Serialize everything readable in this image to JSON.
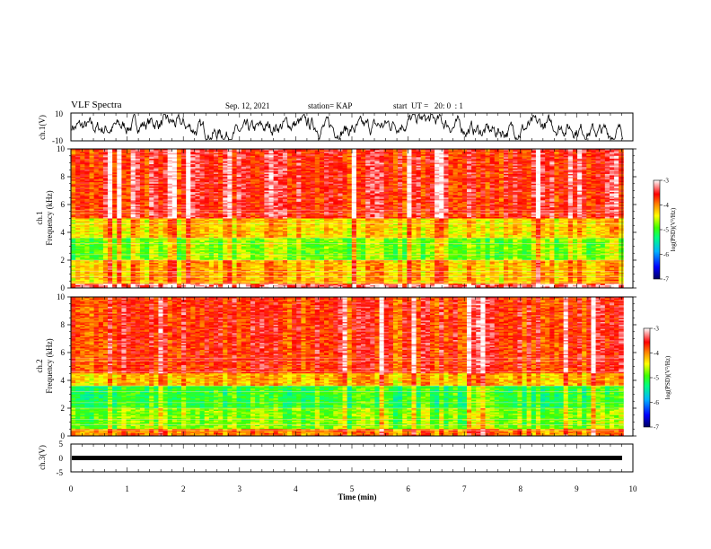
{
  "header": {
    "title": "VLF Spectra",
    "date": "Sep. 12, 2021",
    "station": "station= KAP",
    "start": "start  UT =   20: 0  : 1"
  },
  "chart_data": [
    {
      "type": "line",
      "panel": "ch1-waveform",
      "ylabel": "ch.1(V)",
      "ylim": [
        -10,
        10
      ],
      "yticks": [
        "10",
        "-10"
      ],
      "x_range_min": [
        0,
        10
      ],
      "data_range_min": [
        0,
        9.83
      ],
      "description_values": "noisy oscillating waveform centered near 0 V, amplitude mostly within ±7 V"
    },
    {
      "type": "heatmap",
      "panel": "ch1-spectrogram",
      "ylabel": "ch.1\nFrequency (kHz)",
      "ylabel_line1": "ch.1",
      "ylabel_line2": "Frequency (kHz)",
      "ylim": [
        0,
        10
      ],
      "yticks": [
        "0",
        "2",
        "4",
        "6",
        "8",
        "10"
      ],
      "colorbar": {
        "label": "log(PSD)(V²/Hz)",
        "ticks": [
          "-3",
          "-4",
          "-5",
          "-6",
          "-7"
        ],
        "range": [
          -7,
          -3
        ]
      },
      "bands_khz": [
        {
          "from": 5.0,
          "to": 10.0,
          "level": -3.6
        },
        {
          "from": 3.6,
          "to": 5.0,
          "level": -4.3
        },
        {
          "from": 2.0,
          "to": 3.6,
          "level": -4.8
        },
        {
          "from": 0.3,
          "to": 2.0,
          "level": -4.2
        },
        {
          "from": 0.0,
          "to": 0.3,
          "level": -3.3
        }
      ]
    },
    {
      "type": "heatmap",
      "panel": "ch2-spectrogram",
      "ylabel_line1": "ch.2",
      "ylabel_line2": "Frequency (kHz)",
      "ylim": [
        0,
        10
      ],
      "yticks": [
        "0",
        "2",
        "4",
        "6",
        "8",
        "10"
      ],
      "colorbar": {
        "label": "log(PSD)(V²/Hz)",
        "ticks": [
          "-3",
          "-4",
          "-5",
          "-6",
          "-7"
        ],
        "range": [
          -7,
          -3
        ]
      },
      "bands_khz": [
        {
          "from": 4.5,
          "to": 10.0,
          "level": -3.7
        },
        {
          "from": 3.6,
          "to": 4.5,
          "level": -4.2
        },
        {
          "from": 2.0,
          "to": 3.6,
          "level": -5.1
        },
        {
          "from": 0.5,
          "to": 2.0,
          "level": -4.8
        },
        {
          "from": 0.0,
          "to": 0.5,
          "level": -4.0
        }
      ]
    },
    {
      "type": "line",
      "panel": "ch3-waveform",
      "ylabel": "ch.3(V)",
      "ylim": [
        -5,
        5
      ],
      "yticks": [
        "5",
        "0",
        "-5"
      ],
      "description_values": "dense oscillation between about -0.4 V and -1.1 V"
    }
  ],
  "x_axis": {
    "label": "Time  (min)",
    "ticks": [
      "0",
      "1",
      "2",
      "3",
      "4",
      "5",
      "6",
      "7",
      "8",
      "9",
      "10"
    ],
    "range": [
      0,
      10
    ]
  }
}
